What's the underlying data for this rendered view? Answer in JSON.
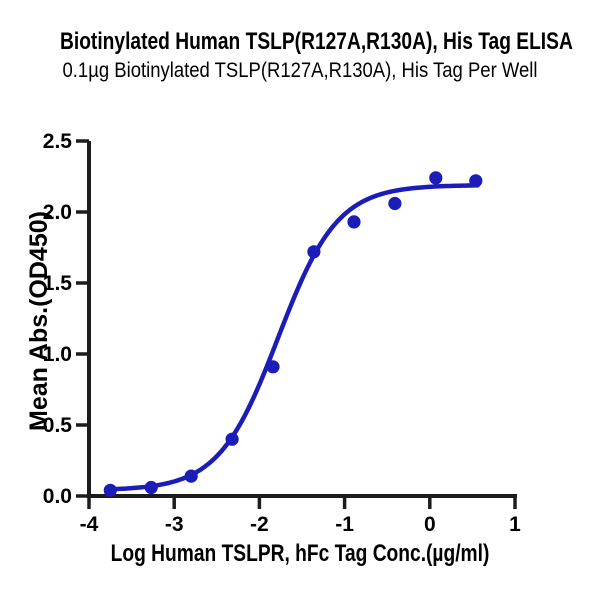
{
  "chart_data": {
    "type": "scatter",
    "title": "Biotinylated Human TSLP(R127A,R130A), His Tag ELISA",
    "subtitle": "0.1µg Biotinylated TSLP(R127A,R130A), His Tag Per Well",
    "xlabel": "Log Human TSLPR, hFc Tag Conc.(µg/ml)",
    "ylabel": "Mean Abs.(OD450)",
    "xlim": [
      -4,
      1
    ],
    "ylim": [
      0,
      2.5
    ],
    "x_ticks": [
      -4,
      -3,
      -2,
      -1,
      0,
      1
    ],
    "x_tick_labels": [
      "-4",
      "-3",
      "-2",
      "-1",
      "0",
      "1"
    ],
    "y_ticks": [
      0.0,
      0.5,
      1.0,
      1.5,
      2.0,
      2.5
    ],
    "y_tick_labels": [
      "0.0",
      "0.5",
      "1.0",
      "1.5",
      "2.0",
      "2.5"
    ],
    "grid": false,
    "legend": "none",
    "series": [
      {
        "x": [
          -3.75,
          -3.27,
          -2.8,
          -2.32,
          -1.84,
          -1.36,
          -0.89,
          -0.41,
          0.07,
          0.54
        ],
        "y": [
          0.04,
          0.06,
          0.14,
          0.4,
          0.91,
          1.72,
          1.93,
          2.06,
          2.24,
          2.22
        ],
        "marker": "circle"
      }
    ],
    "fit_curve": {
      "model": "4PL",
      "bottom": 0.04,
      "top": 2.19,
      "logEC50": -1.78,
      "hill": 1.25,
      "x_start": -3.75,
      "x_end": 0.56
    }
  },
  "colors": {
    "series": "#1c1cb8",
    "axis": "#1c1c1c",
    "text": "#000000",
    "background": "#ffffff"
  }
}
